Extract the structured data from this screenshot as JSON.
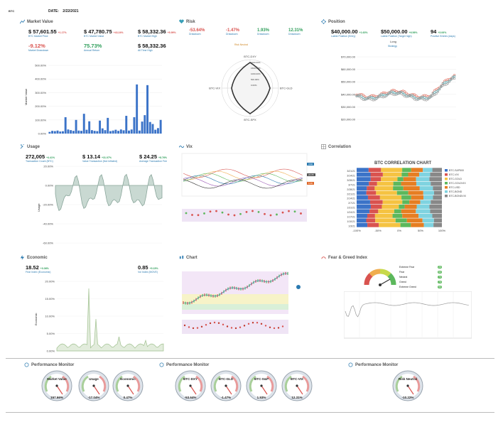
{
  "header": {
    "logo_text": "BTC",
    "date_label": "DATE:",
    "date_value": "2/22/2021"
  },
  "market_value": {
    "title": "Market Value",
    "stats": [
      {
        "value": "$ 57,601.55",
        "pct": "+1.17%",
        "label": "BTC Market Price",
        "pct_color": "red"
      },
      {
        "value": "$ 47,780.75",
        "pct": "+43.24%",
        "label": "BTC Market Value",
        "pct_color": "red"
      },
      {
        "value": "$ 58,332.36",
        "pct": "+5.99%",
        "label": "BTC Market High",
        "pct_color": "red"
      },
      {
        "value": "-9.12%",
        "pct": "",
        "label": "Market Drawdown",
        "pct_color": "red"
      },
      {
        "value": "75.73%",
        "pct": "",
        "label": "Annual Return",
        "pct_color": "grn"
      },
      {
        "value": "$ 58,332.36",
        "pct": "",
        "label": "All Time High",
        "pct_color": "red"
      }
    ],
    "y_axis_label": "Market Value",
    "chart_data": {
      "type": "bar",
      "ylim": [
        0,
        500
      ],
      "yticks": [
        "0.00%",
        "100.00%",
        "200.00%",
        "300.00%",
        "400.00%",
        "500.00%"
      ],
      "values": [
        12,
        20,
        18,
        22,
        15,
        17,
        120,
        30,
        25,
        20,
        100,
        22,
        20,
        145,
        28,
        90,
        25,
        20,
        18,
        95,
        38,
        25,
        115,
        18,
        22,
        28,
        20,
        30,
        24,
        130,
        22,
        30,
        120,
        360,
        22,
        88,
        135,
        355,
        85,
        70,
        28,
        40,
        100
      ]
    }
  },
  "risk": {
    "title": "Risk",
    "stats": [
      {
        "value": "-53.64%",
        "label": "Drawdown",
        "color": "red"
      },
      {
        "value": "-1.47%",
        "label": "Drawdown",
        "color": "red"
      },
      {
        "value": "1.93%",
        "label": "Drawdown",
        "color": "grn"
      },
      {
        "value": "12.31%",
        "label": "Drawdown",
        "color": "grn"
      }
    ],
    "center_label": "Risk Neutral",
    "radar": {
      "axes": [
        "BTC-DXY",
        "BTC-GLD",
        "BTC-SPX",
        "BTC-VIX"
      ],
      "ticks": [
        "2000.00%",
        "1500.00%",
        "1000.00%",
        "500.00%",
        "0.00%"
      ]
    }
  },
  "position": {
    "title": "Position",
    "stats": [
      {
        "value": "$40,000.00",
        "pct": "+1.63%",
        "label": "Latest Position (Entry)"
      },
      {
        "value": "$50,000.00",
        "pct": "+6.56%",
        "label": "Latest Position (Target high)"
      },
      {
        "value": "94",
        "pct": "+3.06%",
        "label": "Positive Entries (days)"
      }
    ],
    "sub": [
      "Long",
      "Strategy"
    ],
    "chart_data": {
      "type": "scatter",
      "yticks": [
        "$70,000.00",
        "$60,000.00",
        "$50,000.00",
        "$40,000.00",
        "$30,000.00",
        "$20,000.00"
      ],
      "ylim": [
        20000,
        70000
      ]
    }
  },
  "usage": {
    "title": "Usage",
    "stats": [
      {
        "value": "272,005",
        "pct": "+4.41%",
        "label": "Transaction Count (BTC)"
      },
      {
        "value": "$ 13.14",
        "pct": "+31.07%",
        "label": "Value Transaction (Not Inflated)"
      },
      {
        "value": "$ 24.25",
        "pct": "+8.76%",
        "label": "Average Transaction Fee"
      }
    ],
    "y_axis_label": "Usage",
    "chart_data": {
      "type": "area",
      "yticks": [
        "20.00%",
        "0.00%",
        "-20.00%",
        "-40.00%",
        "-60.00%"
      ],
      "ylim": [
        -60,
        30
      ]
    }
  },
  "vix": {
    "title": "Vix",
    "badges": [
      "USD",
      "22.05",
      "6.49"
    ]
  },
  "correlation": {
    "title": "Correlation",
    "chart_data": {
      "type": "bar",
      "title": "BTC CORRELATION CHART",
      "categories": [
        "3/21/21",
        "3/14/21",
        "3/28/21",
        "3/7/21",
        "2/28/21",
        "2/21/21",
        "2/14/21",
        "2/7/21",
        "1/31/21",
        "1/24/21",
        "1/17/21",
        "1/10/21",
        "1/3/21"
      ],
      "xticks": [
        "-100%",
        "-50%",
        "0%",
        "50%",
        "100%"
      ],
      "legend": [
        "BTC-S&P500",
        "BTC-VIX",
        "BTC-GOLD",
        "BTC-GOLDVIX",
        "BTC-USD",
        "BTC-BOND",
        "BTC-BONDVIX"
      ]
    }
  },
  "economic": {
    "title": "Economic",
    "stats": [
      {
        "value": "18.52",
        "pct": "+0.06%",
        "label": "Fear Index (Economic)"
      },
      {
        "value": "0.85",
        "pct": "+5.15%",
        "label": "Vol Index (MOVE)"
      }
    ],
    "y_axis_label": "Economic",
    "chart_data": {
      "type": "area",
      "yticks": [
        "20.00%",
        "15.00%",
        "10.00%",
        "5.00%",
        "0.00%"
      ],
      "ylim": [
        0,
        20
      ]
    }
  },
  "chart": {
    "title": "Chart"
  },
  "fear_greed": {
    "title": "Fear & Greed Index",
    "legend": [
      "Extreme Fear",
      "Fear",
      "Neutral",
      "Greed",
      "Extreme Greed"
    ],
    "values": [
      "25",
      "50",
      "70",
      "75",
      "90"
    ]
  },
  "performance": [
    {
      "title": "Performance Monitor",
      "gauges": [
        {
          "label": "Market Value",
          "value": "157.66%"
        },
        {
          "label": "Usage",
          "value": "-17.04%"
        },
        {
          "label": "Economic",
          "value": "0.47%"
        }
      ]
    },
    {
      "title": "Performance Monitor",
      "gauges": [
        {
          "label": "BTC-DXY",
          "value": "-53.64%"
        },
        {
          "label": "BTC-GLD",
          "value": "-1.47%"
        },
        {
          "label": "BTC-S&P",
          "value": "1.93%"
        },
        {
          "label": "BTC-VIX",
          "value": "12.31%"
        }
      ]
    },
    {
      "title": "Performance Monitor",
      "gauges": [
        {
          "label": "Risk Neutral",
          "value": "-10.22%"
        }
      ]
    }
  ],
  "colors": {
    "bar": "#3b73c8",
    "area": "#9fb8b0",
    "accent": "#2a7ab0",
    "red": "#d9534f",
    "green": "#2e9e5a"
  }
}
